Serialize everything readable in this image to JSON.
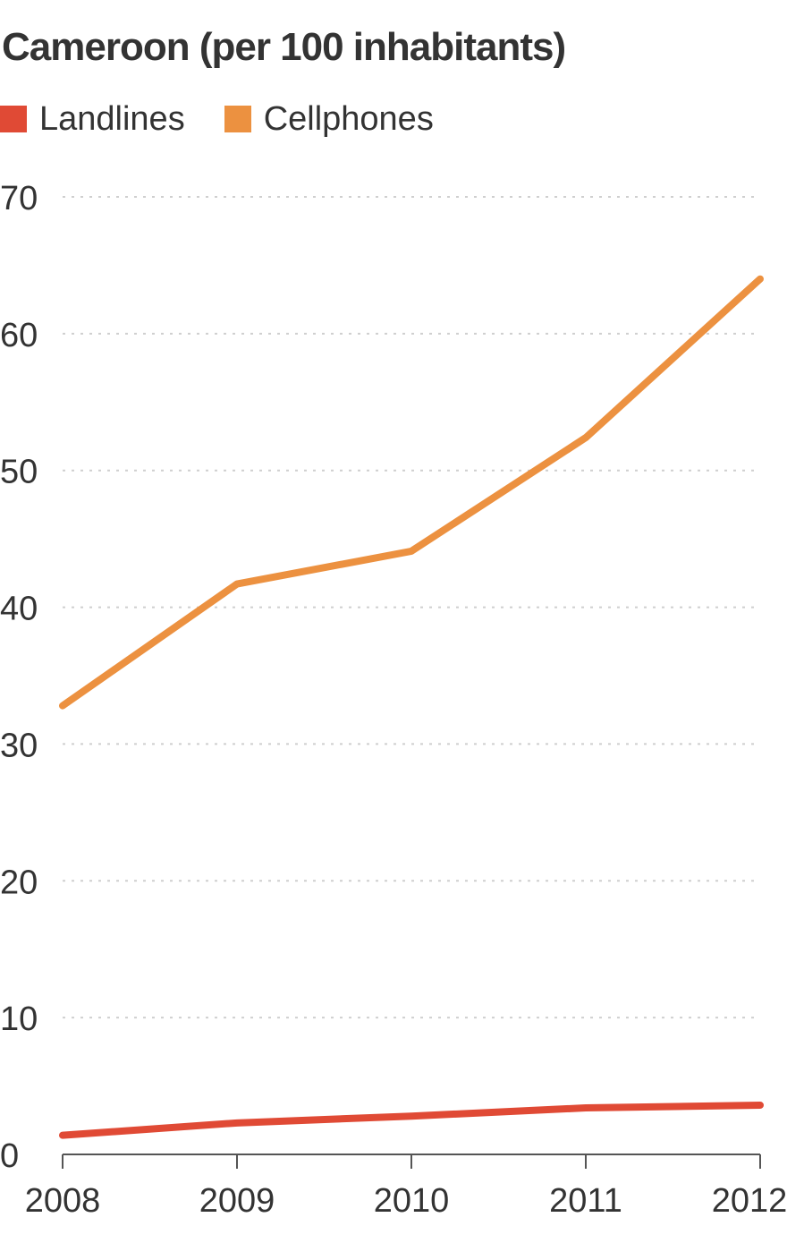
{
  "colors": {
    "landlines": "#e04a35",
    "cellphones": "#ec9140",
    "grid": "#cfcfcf",
    "axis": "#555555",
    "text": "#333333"
  },
  "chart_data": {
    "type": "line",
    "title": "Cameroon (per 100 inhabitants)",
    "xlabel": "",
    "ylabel": "",
    "x": [
      2008,
      2009,
      2010,
      2011,
      2012
    ],
    "x_tick_labels": [
      "2008",
      "2009",
      "2010",
      "2011",
      "2012"
    ],
    "ylim": [
      0,
      70
    ],
    "y_ticks": [
      0,
      10,
      20,
      30,
      40,
      50,
      60,
      70
    ],
    "y_tick_labels": [
      "0",
      "10",
      "20",
      "30",
      "40",
      "50",
      "60",
      "70"
    ],
    "grid": true,
    "legend_position": "top-left",
    "series": [
      {
        "name": "Landlines",
        "color": "#e04a35",
        "values": [
          1.4,
          2.3,
          2.8,
          3.4,
          3.6
        ]
      },
      {
        "name": "Cellphones",
        "color": "#ec9140",
        "values": [
          32.8,
          41.7,
          44.1,
          52.4,
          64.0
        ]
      }
    ]
  }
}
